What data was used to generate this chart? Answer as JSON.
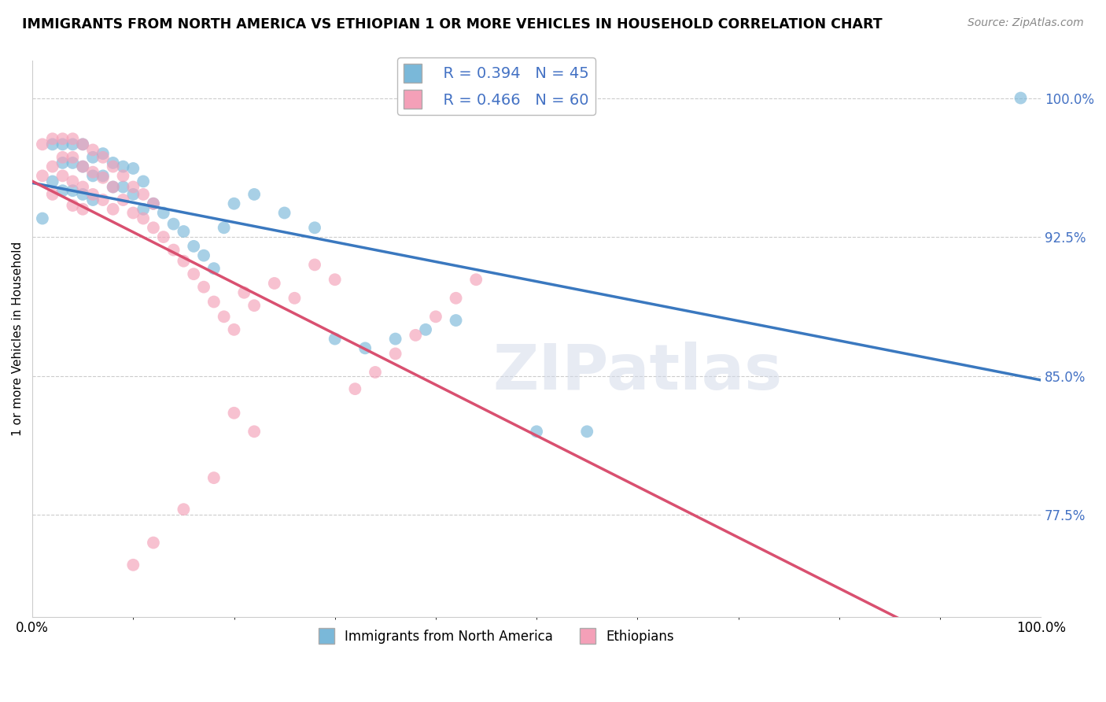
{
  "title": "IMMIGRANTS FROM NORTH AMERICA VS ETHIOPIAN 1 OR MORE VEHICLES IN HOUSEHOLD CORRELATION CHART",
  "source": "Source: ZipAtlas.com",
  "ylabel": "1 or more Vehicles in Household",
  "xlim": [
    0.0,
    1.0
  ],
  "ylim": [
    0.72,
    1.02
  ],
  "ytick_labels": [
    "77.5%",
    "85.0%",
    "92.5%",
    "100.0%"
  ],
  "ytick_values": [
    0.775,
    0.85,
    0.925,
    1.0
  ],
  "xtick_labels": [
    "0.0%",
    "100.0%"
  ],
  "xtick_values": [
    0.0,
    1.0
  ],
  "blue_R": 0.394,
  "blue_N": 45,
  "pink_R": 0.466,
  "pink_N": 60,
  "blue_color": "#7ab8d9",
  "pink_color": "#f4a0b8",
  "blue_line_color": "#3a78bf",
  "pink_line_color": "#d95070",
  "watermark": "ZIPatlas",
  "legend1_label1": "R = 0.394   N = 45",
  "legend1_label2": "R = 0.466   N = 60",
  "legend2_label1": "Immigrants from North America",
  "legend2_label2": "Ethiopians",
  "blue_scatter_x": [
    0.01,
    0.02,
    0.02,
    0.03,
    0.03,
    0.03,
    0.04,
    0.04,
    0.04,
    0.05,
    0.05,
    0.05,
    0.06,
    0.06,
    0.06,
    0.07,
    0.07,
    0.08,
    0.08,
    0.09,
    0.09,
    0.1,
    0.1,
    0.11,
    0.11,
    0.12,
    0.13,
    0.14,
    0.15,
    0.16,
    0.17,
    0.18,
    0.19,
    0.2,
    0.22,
    0.25,
    0.28,
    0.3,
    0.33,
    0.36,
    0.39,
    0.42,
    0.5,
    0.55,
    0.98
  ],
  "blue_scatter_y": [
    0.935,
    0.975,
    0.955,
    0.975,
    0.965,
    0.95,
    0.975,
    0.965,
    0.95,
    0.975,
    0.963,
    0.948,
    0.968,
    0.958,
    0.945,
    0.97,
    0.958,
    0.965,
    0.952,
    0.963,
    0.952,
    0.962,
    0.948,
    0.955,
    0.94,
    0.943,
    0.938,
    0.932,
    0.928,
    0.92,
    0.915,
    0.908,
    0.93,
    0.943,
    0.948,
    0.938,
    0.93,
    0.87,
    0.865,
    0.87,
    0.875,
    0.88,
    0.82,
    0.82,
    1.0
  ],
  "pink_scatter_x": [
    0.01,
    0.01,
    0.02,
    0.02,
    0.02,
    0.03,
    0.03,
    0.03,
    0.04,
    0.04,
    0.04,
    0.04,
    0.05,
    0.05,
    0.05,
    0.05,
    0.06,
    0.06,
    0.06,
    0.07,
    0.07,
    0.07,
    0.08,
    0.08,
    0.08,
    0.09,
    0.09,
    0.1,
    0.1,
    0.11,
    0.11,
    0.12,
    0.12,
    0.13,
    0.14,
    0.15,
    0.16,
    0.17,
    0.18,
    0.19,
    0.2,
    0.21,
    0.22,
    0.24,
    0.26,
    0.28,
    0.3,
    0.32,
    0.34,
    0.36,
    0.38,
    0.4,
    0.42,
    0.44,
    0.2,
    0.22,
    0.18,
    0.15,
    0.12,
    0.1
  ],
  "pink_scatter_y": [
    0.975,
    0.958,
    0.978,
    0.963,
    0.948,
    0.978,
    0.968,
    0.958,
    0.978,
    0.968,
    0.955,
    0.942,
    0.975,
    0.963,
    0.952,
    0.94,
    0.972,
    0.96,
    0.948,
    0.968,
    0.957,
    0.945,
    0.963,
    0.952,
    0.94,
    0.958,
    0.945,
    0.952,
    0.938,
    0.948,
    0.935,
    0.943,
    0.93,
    0.925,
    0.918,
    0.912,
    0.905,
    0.898,
    0.89,
    0.882,
    0.875,
    0.895,
    0.888,
    0.9,
    0.892,
    0.91,
    0.902,
    0.843,
    0.852,
    0.862,
    0.872,
    0.882,
    0.892,
    0.902,
    0.83,
    0.82,
    0.795,
    0.778,
    0.76,
    0.748
  ]
}
